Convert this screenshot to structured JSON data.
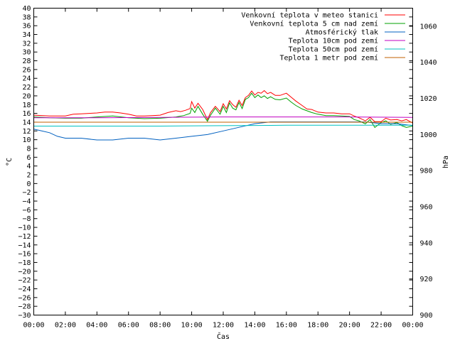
{
  "chart_data": {
    "type": "line",
    "title": "",
    "xlabel": "Čas",
    "ylabel": "°C",
    "y2label": "hPa",
    "ylim": [
      -30,
      40
    ],
    "y2lim": [
      900,
      1070
    ],
    "xlim": [
      0,
      24
    ],
    "x_ticks": [
      "00:00",
      "02:00",
      "04:00",
      "06:00",
      "08:00",
      "10:00",
      "12:00",
      "14:00",
      "16:00",
      "18:00",
      "20:00",
      "22:00",
      "00:00"
    ],
    "y_ticks": [
      40,
      38,
      36,
      34,
      32,
      30,
      28,
      26,
      24,
      22,
      20,
      18,
      16,
      14,
      12,
      10,
      8,
      6,
      4,
      2,
      0,
      -2,
      -4,
      -6,
      -8,
      -10,
      -12,
      -14,
      -16,
      -18,
      -20,
      -22,
      -24,
      -26,
      -28,
      -30
    ],
    "y2_ticks": [
      1060,
      1040,
      1020,
      1000,
      980,
      960,
      940,
      920,
      900
    ],
    "grid": false,
    "legend_position": "top-right",
    "series": [
      {
        "name": "Venkovní teplota v meteo stanici",
        "color": "#ff0000",
        "axis": "left",
        "x": [
          0,
          1,
          2,
          2.5,
          3,
          3.5,
          4,
          4.5,
          5,
          5.5,
          6,
          6.5,
          7,
          7.5,
          8,
          8.5,
          9,
          9.3,
          9.6,
          9.9,
          10,
          10.2,
          10.4,
          10.7,
          11,
          11.2,
          11.5,
          11.8,
          12,
          12.2,
          12.4,
          12.6,
          12.8,
          13,
          13.2,
          13.4,
          13.6,
          13.8,
          14,
          14.2,
          14.4,
          14.6,
          14.8,
          15,
          15.3,
          15.6,
          16,
          16.3,
          16.6,
          17,
          17.3,
          17.6,
          18,
          18.5,
          19,
          19.5,
          20,
          20.3,
          20.6,
          21,
          21.3,
          21.6,
          22,
          22.3,
          22.6,
          23,
          23.3,
          23.6,
          24
        ],
        "y": [
          15.6,
          15.4,
          15.4,
          15.8,
          15.9,
          16.0,
          16.1,
          16.3,
          16.3,
          16.1,
          15.8,
          15.4,
          15.4,
          15.5,
          15.6,
          16.2,
          16.6,
          16.4,
          16.7,
          17.1,
          18.7,
          17.2,
          18.3,
          16.9,
          14.6,
          16.2,
          17.6,
          16.4,
          18.2,
          17.0,
          18.9,
          18.0,
          17.4,
          19.0,
          17.8,
          19.6,
          20.1,
          21.1,
          20.2,
          20.8,
          20.6,
          21.2,
          20.5,
          20.8,
          20.1,
          20.1,
          20.6,
          19.7,
          18.8,
          17.8,
          17.0,
          16.9,
          16.3,
          16.1,
          16.1,
          15.9,
          15.9,
          15.4,
          15.0,
          14.3,
          15.1,
          14.1,
          14.1,
          14.9,
          14.5,
          14.6,
          14.3,
          14.6,
          13.8
        ]
      },
      {
        "name": "Venkovní teplota 5 cm nad zemí",
        "color": "#00a000",
        "axis": "left",
        "x": [
          0,
          1,
          2,
          3,
          4,
          5,
          6,
          7,
          8,
          9,
          9.5,
          9.9,
          10,
          10.2,
          10.4,
          10.7,
          11,
          11.2,
          11.5,
          11.8,
          12,
          12.2,
          12.4,
          12.6,
          12.8,
          13,
          13.2,
          13.4,
          13.6,
          13.8,
          14,
          14.2,
          14.4,
          14.6,
          14.8,
          15,
          15.3,
          15.6,
          16,
          16.3,
          16.6,
          17,
          17.3,
          17.6,
          18,
          18.5,
          19,
          19.5,
          20,
          20.3,
          20.6,
          21,
          21.3,
          21.6,
          22,
          22.3,
          22.6,
          23,
          23.3,
          23.6,
          24
        ],
        "y": [
          15.2,
          15.0,
          14.9,
          14.9,
          15.2,
          15.4,
          15.0,
          14.8,
          14.9,
          15.2,
          15.5,
          16.0,
          17.2,
          16.2,
          17.6,
          15.8,
          14.2,
          15.6,
          17.2,
          15.8,
          17.6,
          16.2,
          18.4,
          17.2,
          16.8,
          18.5,
          17.1,
          19.2,
          19.6,
          20.6,
          19.6,
          20.2,
          19.6,
          20.0,
          19.4,
          19.8,
          19.2,
          19.1,
          19.5,
          18.6,
          17.8,
          17.0,
          16.6,
          16.2,
          15.8,
          15.5,
          15.5,
          15.4,
          15.3,
          14.6,
          14.3,
          13.6,
          14.6,
          12.8,
          13.9,
          14.3,
          13.5,
          13.9,
          13.2,
          12.8,
          13.1
        ]
      },
      {
        "name": "Atmosférický tlak",
        "color": "#0060c0",
        "axis": "right",
        "x": [
          0,
          0.5,
          1,
          1.5,
          2,
          3,
          4,
          5,
          6,
          7,
          8,
          9,
          10,
          11,
          12,
          13,
          14,
          15,
          16,
          17,
          18,
          19,
          20,
          21,
          22,
          23,
          24
        ],
        "y": [
          1003,
          1002,
          1001,
          999,
          998,
          998,
          997,
          997,
          998,
          998,
          997,
          998,
          999,
          1000,
          1002,
          1004,
          1006,
          1007,
          1007,
          1007,
          1007,
          1007,
          1007,
          1007,
          1006,
          1006,
          1005
        ]
      },
      {
        "name": "Teplota 10cm pod zemí",
        "color": "#c000c0",
        "axis": "left",
        "x": [
          0,
          4,
          8,
          12,
          16,
          20,
          24
        ],
        "y": [
          15.0,
          15.0,
          15.1,
          15.2,
          15.2,
          15.2,
          15.1
        ]
      },
      {
        "name": "Teplota 50cm pod zemí",
        "color": "#00c0c0",
        "axis": "left",
        "x": [
          0,
          4,
          8,
          12,
          16,
          20,
          24
        ],
        "y": [
          13.1,
          13.1,
          13.1,
          13.2,
          13.3,
          13.3,
          13.3
        ]
      },
      {
        "name": "Teplota 1 metr pod zemí",
        "color": "#c06000",
        "axis": "left",
        "x": [
          0,
          4,
          8,
          12,
          16,
          20,
          24
        ],
        "y": [
          14.0,
          14.0,
          14.0,
          14.0,
          14.0,
          14.0,
          14.0
        ]
      }
    ]
  }
}
